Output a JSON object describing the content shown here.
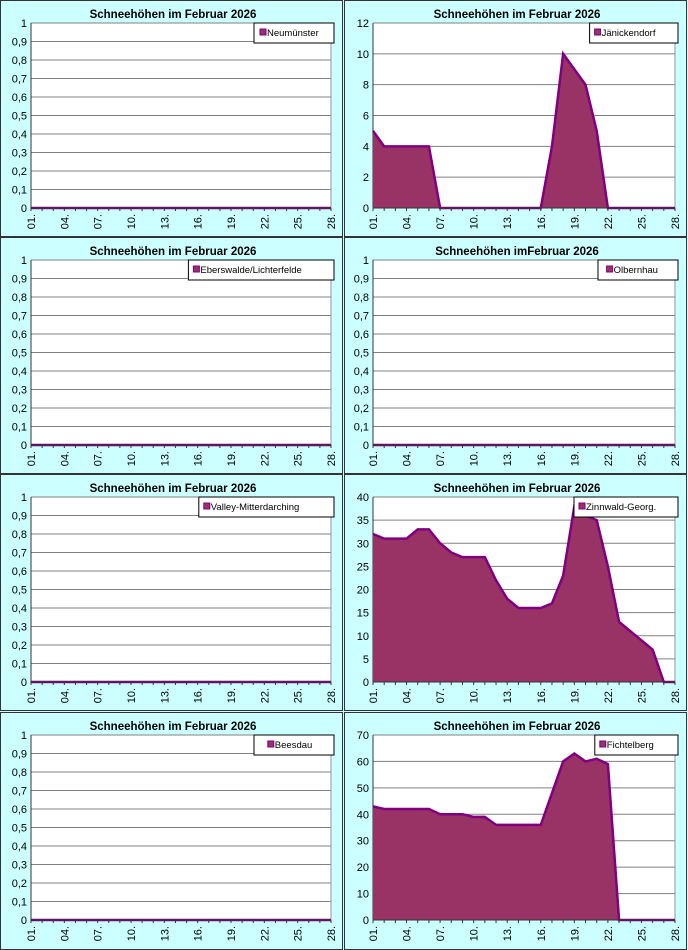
{
  "chart_data": [
    {
      "type": "area",
      "title": "Schneehöhen im Februar 2026",
      "series": [
        {
          "name": "Neumünster",
          "values": [
            0,
            0,
            0,
            0,
            0,
            0,
            0,
            0,
            0,
            0,
            0,
            0,
            0,
            0,
            0,
            0,
            0,
            0,
            0,
            0,
            0,
            0,
            0,
            0,
            0,
            0,
            0,
            0
          ]
        }
      ],
      "ylim": [
        0,
        1
      ],
      "ystep": 0.1,
      "decimal_comma": true,
      "legend": "top-right",
      "grid": true
    },
    {
      "type": "area",
      "title": "Schneehöhen im Februar 2026",
      "series": [
        {
          "name": "Jänickendorf",
          "values": [
            5,
            4,
            4,
            4,
            4,
            4,
            0,
            0,
            0,
            0,
            0,
            0,
            0,
            0,
            0,
            0,
            4,
            10,
            9,
            8,
            5,
            0,
            0,
            0,
            0,
            0,
            0,
            0
          ]
        }
      ],
      "ylim": [
        0,
        12
      ],
      "ystep": 2,
      "legend": "top-right",
      "grid": true
    },
    {
      "type": "area",
      "title": "Schneehöhen im Februar 2026",
      "series": [
        {
          "name": "Eberswalde/Lichterfelde",
          "values": [
            0,
            0,
            0,
            0,
            0,
            0,
            0,
            0,
            0,
            0,
            0,
            0,
            0,
            0,
            0,
            0,
            0,
            0,
            0,
            0,
            0,
            0,
            0,
            0,
            0,
            0,
            0,
            0
          ]
        }
      ],
      "ylim": [
        0,
        1
      ],
      "ystep": 0.1,
      "decimal_comma": true,
      "legend": "top-right",
      "grid": true
    },
    {
      "type": "area",
      "title": "Schneehöhen imFebruar  2026",
      "series": [
        {
          "name": "Olbernhau",
          "values": [
            0,
            0,
            0,
            0,
            0,
            0,
            0,
            0,
            0,
            0,
            0,
            0,
            0,
            0,
            0,
            0,
            0,
            0,
            0,
            0,
            0,
            0,
            0,
            0,
            0,
            0,
            0,
            0
          ]
        }
      ],
      "ylim": [
        0,
        1
      ],
      "ystep": 0.1,
      "decimal_comma": true,
      "legend": "top-right",
      "grid": true
    },
    {
      "type": "area",
      "title": "Schneehöhen im Februar 2026",
      "series": [
        {
          "name": "Valley-Mitterdarching",
          "values": [
            0,
            0,
            0,
            0,
            0,
            0,
            0,
            0,
            0,
            0,
            0,
            0,
            0,
            0,
            0,
            0,
            0,
            0,
            0,
            0,
            0,
            0,
            0,
            0,
            0,
            0,
            0,
            0
          ]
        }
      ],
      "ylim": [
        0,
        1
      ],
      "ystep": 0.1,
      "decimal_comma": true,
      "legend": "top-right",
      "grid": true
    },
    {
      "type": "area",
      "title": "Schneehöhen im Februar 2026",
      "series": [
        {
          "name": "Zinnwald-Georg.",
          "values": [
            32,
            31,
            31,
            31,
            33,
            33,
            30,
            28,
            27,
            27,
            27,
            22,
            18,
            16,
            16,
            16,
            17,
            23,
            38,
            36,
            35,
            25,
            13,
            11,
            9,
            7,
            0,
            0
          ]
        }
      ],
      "ylim": [
        0,
        40
      ],
      "ystep": 5,
      "legend": "top-right",
      "grid": true
    },
    {
      "type": "area",
      "title": "Schneehöhen im Februar 2026",
      "series": [
        {
          "name": "Beesdau",
          "values": [
            0,
            0,
            0,
            0,
            0,
            0,
            0,
            0,
            0,
            0,
            0,
            0,
            0,
            0,
            0,
            0,
            0,
            0,
            0,
            0,
            0,
            0,
            0,
            0,
            0,
            0,
            0,
            0
          ]
        }
      ],
      "ylim": [
        0,
        1
      ],
      "ystep": 0.1,
      "decimal_comma": true,
      "legend": "top-right",
      "grid": true
    },
    {
      "type": "area",
      "title": "Schneehöhen im Februar 2026",
      "series": [
        {
          "name": "Fichtelberg",
          "values": [
            43,
            42,
            42,
            42,
            42,
            42,
            40,
            40,
            40,
            39,
            39,
            36,
            36,
            36,
            36,
            36,
            48,
            60,
            63,
            60,
            61,
            59,
            0,
            0,
            0,
            0,
            0,
            0
          ]
        }
      ],
      "ylim": [
        0,
        70
      ],
      "ystep": 10,
      "legend": "top-right",
      "grid": true
    }
  ],
  "x_tick_labels": [
    "01.",
    "04.",
    "07.",
    "10.",
    "13.",
    "16.",
    "19.",
    "22.",
    "25.",
    "28."
  ],
  "colors": {
    "fill": "#993366",
    "line": "#800080",
    "background": "#ccffff",
    "grid": "#808080"
  }
}
